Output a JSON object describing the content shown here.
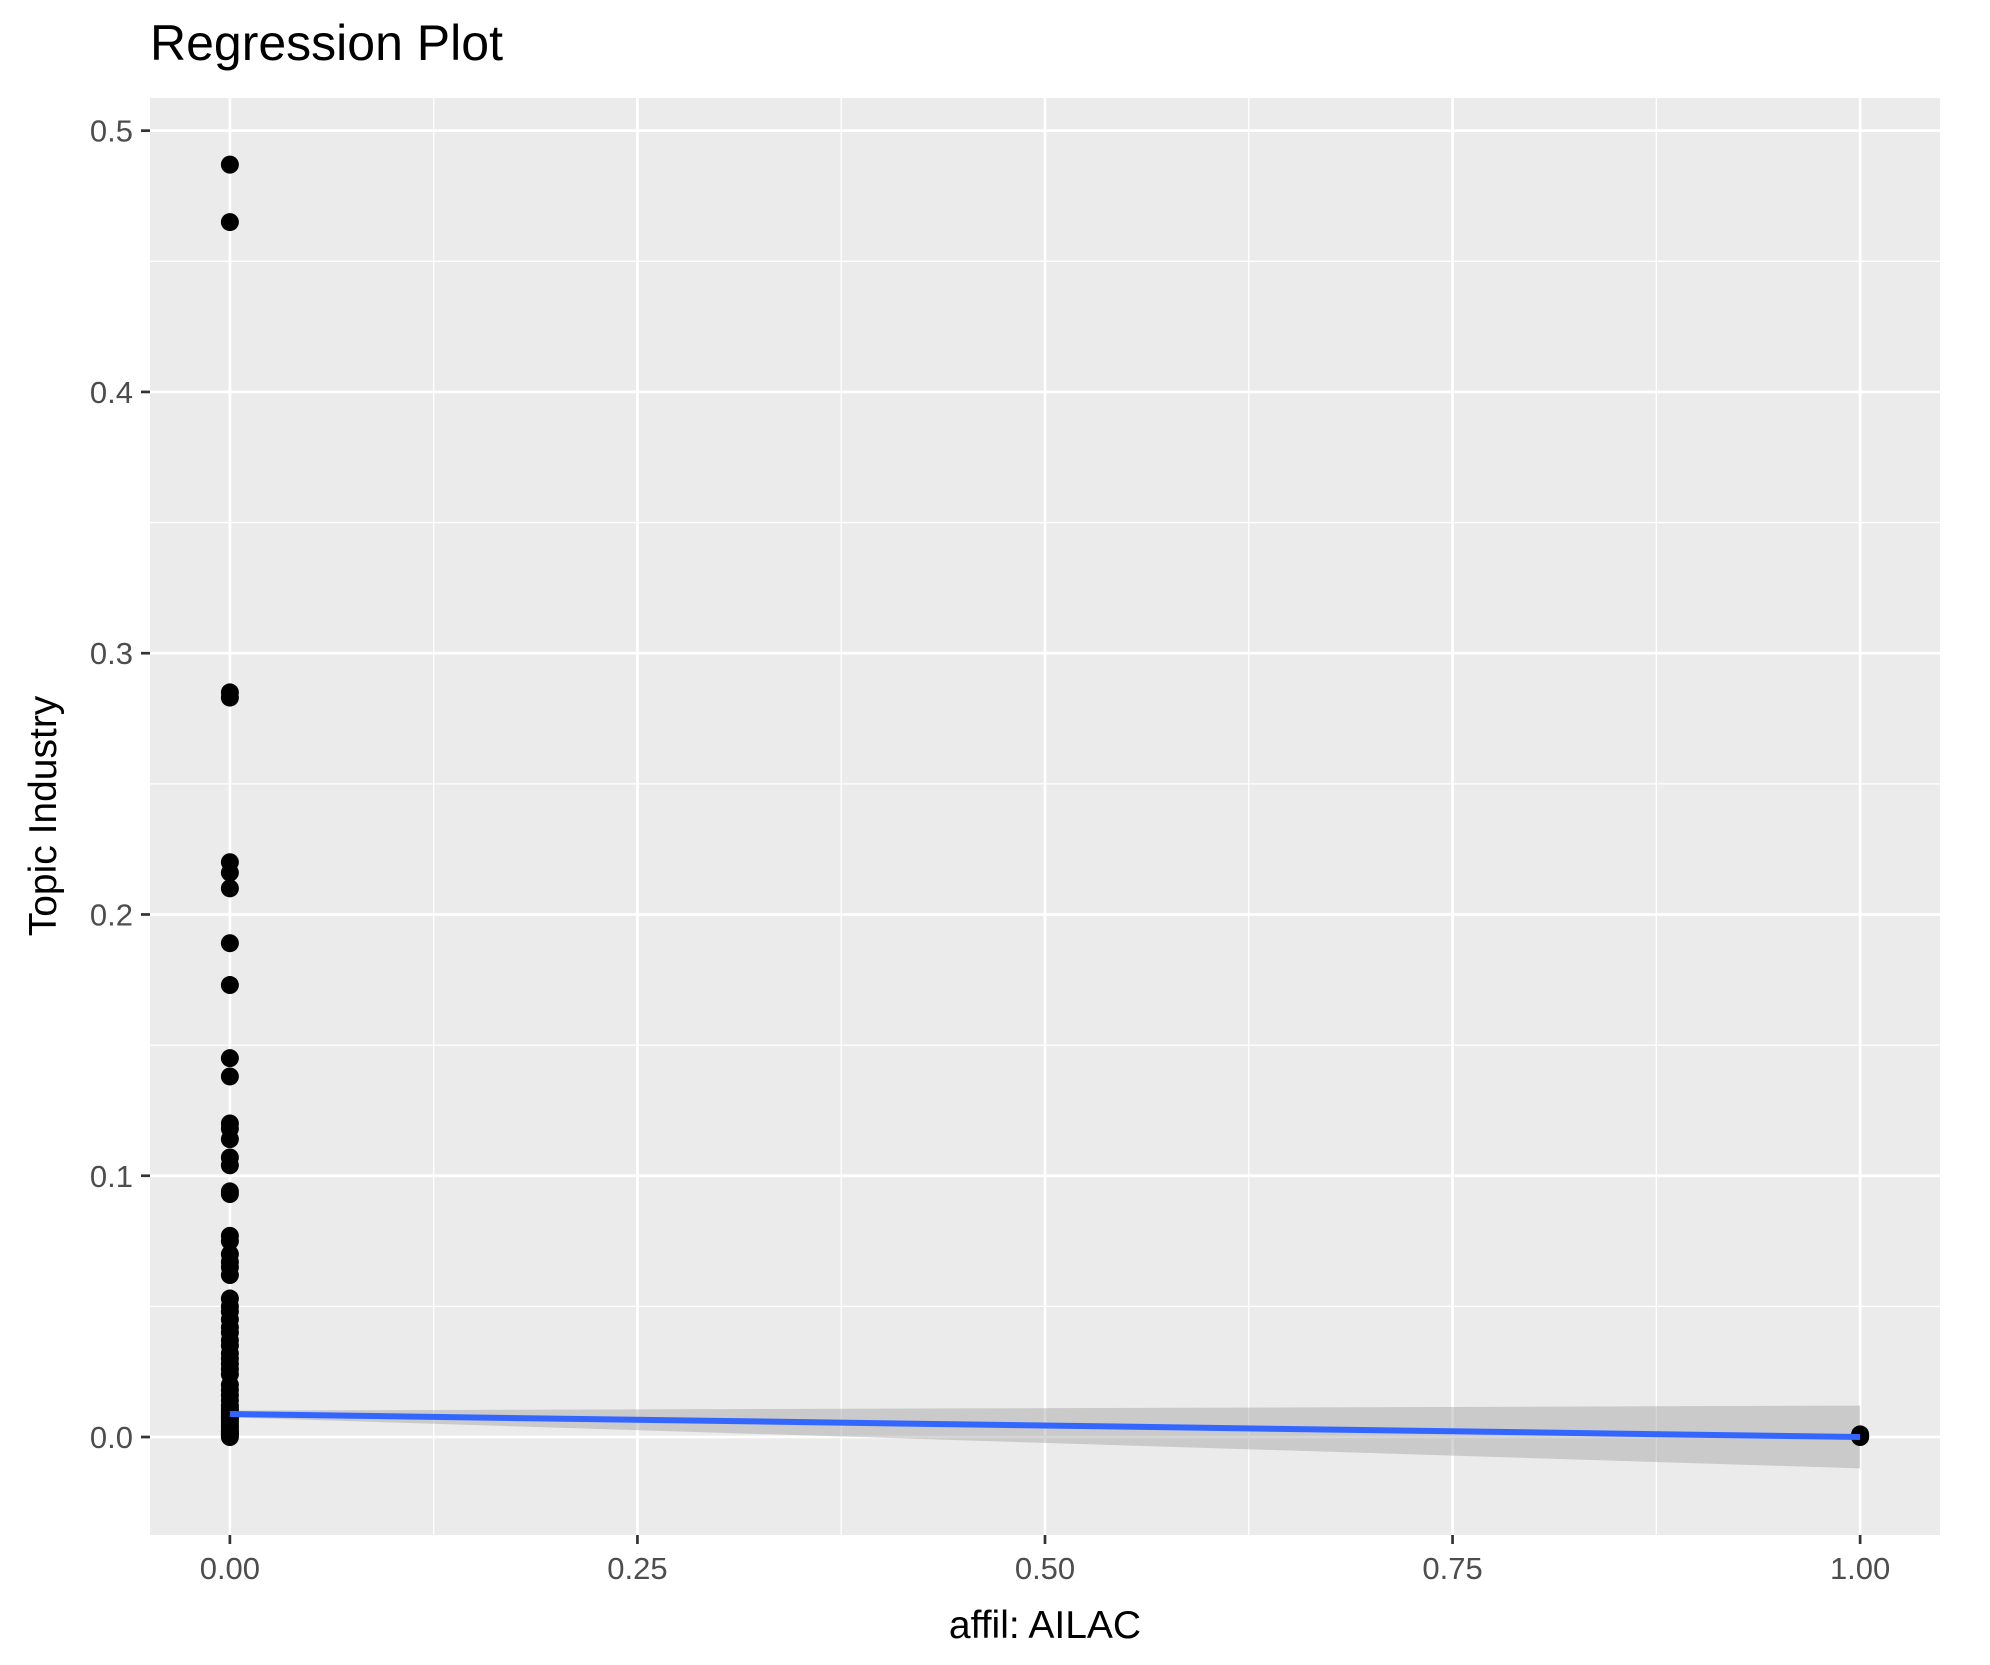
{
  "chart_data": {
    "type": "scatter",
    "title": "Regression Plot",
    "xlabel": "affil: AILAC",
    "ylabel": "Topic Industry",
    "xlim": [
      -0.049,
      1.049
    ],
    "ylim": [
      -0.0375,
      0.5125
    ],
    "x_ticks": [
      {
        "value": 0.0,
        "label": "0.00"
      },
      {
        "value": 0.25,
        "label": "0.25"
      },
      {
        "value": 0.5,
        "label": "0.50"
      },
      {
        "value": 0.75,
        "label": "0.75"
      },
      {
        "value": 1.0,
        "label": "1.00"
      }
    ],
    "y_ticks": [
      {
        "value": 0.0,
        "label": "0.0"
      },
      {
        "value": 0.1,
        "label": "0.1"
      },
      {
        "value": 0.2,
        "label": "0.2"
      },
      {
        "value": 0.3,
        "label": "0.3"
      },
      {
        "value": 0.4,
        "label": "0.4"
      },
      {
        "value": 0.5,
        "label": "0.5"
      }
    ],
    "grid": true,
    "colors": {
      "panel": "#ebebeb",
      "grid": "#ffffff",
      "points": "#000000",
      "fit_line": "#3366ff",
      "ci_band": "#999999"
    },
    "series": [
      {
        "x": [
          0,
          0,
          0,
          0,
          0,
          0,
          0,
          0,
          0,
          0,
          0,
          0,
          0,
          0,
          0,
          0,
          0,
          0,
          0,
          0,
          0,
          0,
          0,
          0,
          0,
          0,
          0,
          0,
          0,
          0,
          0,
          0,
          0,
          0,
          0,
          0,
          0,
          0,
          0,
          0,
          0,
          0,
          0,
          0,
          0,
          0,
          0,
          0,
          0,
          0,
          0,
          0,
          0,
          0,
          0,
          0,
          1,
          1,
          1,
          1
        ],
        "y": [
          0.487,
          0.465,
          0.285,
          0.283,
          0.22,
          0.216,
          0.21,
          0.189,
          0.173,
          0.145,
          0.138,
          0.12,
          0.118,
          0.114,
          0.107,
          0.104,
          0.094,
          0.093,
          0.077,
          0.075,
          0.07,
          0.067,
          0.065,
          0.062,
          0.053,
          0.05,
          0.048,
          0.045,
          0.042,
          0.04,
          0.037,
          0.035,
          0.032,
          0.03,
          0.028,
          0.026,
          0.024,
          0.02,
          0.018,
          0.016,
          0.014,
          0.012,
          0.011,
          0.01,
          0.009,
          0.008,
          0.007,
          0.006,
          0.005,
          0.004,
          0.003,
          0.002,
          0.002,
          0.001,
          0.001,
          0.0,
          0.0,
          0.0005,
          0.001,
          0.0002
        ]
      }
    ],
    "regression": {
      "x": [
        0,
        1
      ],
      "y": [
        0.0088,
        0.0
      ],
      "ci_lower": [
        0.0075,
        -0.012
      ],
      "ci_upper": [
        0.0101,
        0.012
      ]
    }
  }
}
